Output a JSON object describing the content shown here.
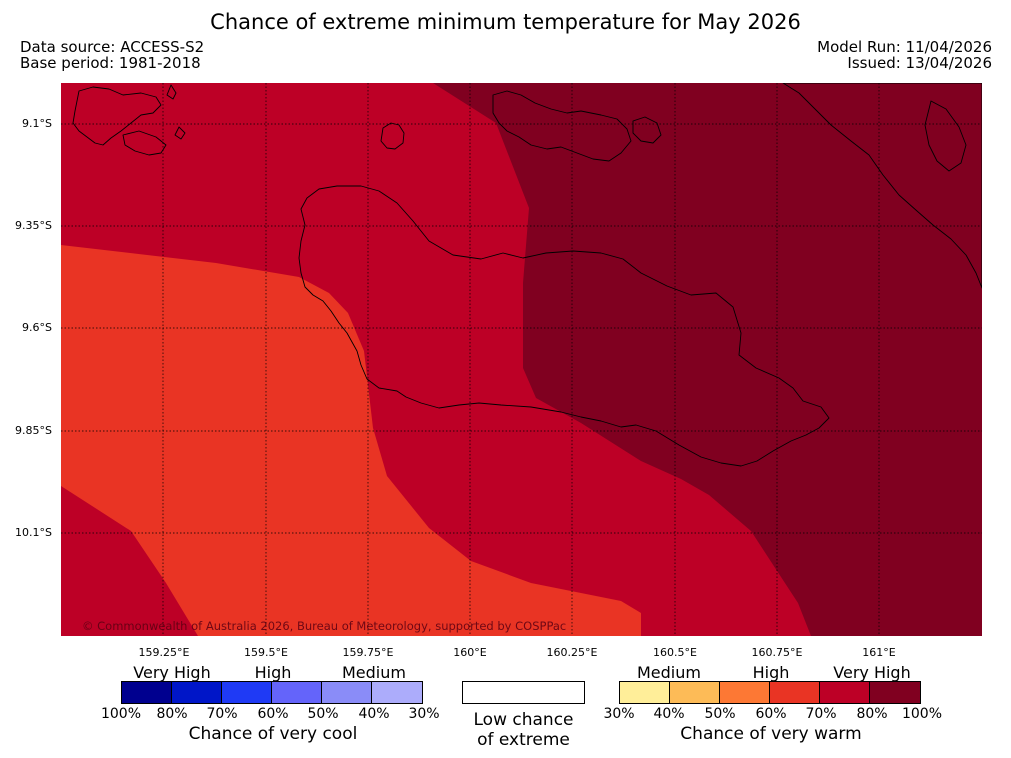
{
  "title": "Chance of extreme minimum temperature for May 2026",
  "data_source": "Data source: ACCESS-S2",
  "base_period": "Base period: 1981-2018",
  "model_run": "Model Run: 11/04/2026",
  "issued": "Issued: 13/04/2026",
  "copyright": "© Commonwealth of Australia 2026, Bureau of Meteorology, supported by COSPPac",
  "map": {
    "lat_labels": [
      "9.1°S",
      "9.35°S",
      "9.6°S",
      "9.85°S",
      "10.1°S"
    ],
    "lon_labels": [
      "159.25°E",
      "159.5°E",
      "159.75°E",
      "160°E",
      "160.25°E",
      "160.5°E",
      "160.75°E",
      "161°E"
    ],
    "zones": [
      {
        "name": "very-high-warm-80-100",
        "color": "#800020"
      },
      {
        "name": "very-high-warm-70-80",
        "color": "#bd0026"
      },
      {
        "name": "high-warm-60-70",
        "color": "#e93424"
      }
    ]
  },
  "legend": {
    "cool": {
      "categories": [
        "Very High",
        "High",
        "Medium"
      ],
      "colors": [
        "#00008f",
        "#0016c8",
        "#1f3af5",
        "#6464fa",
        "#8a8cf8",
        "#acacfb"
      ],
      "ticks": [
        "100%",
        "80%",
        "70%",
        "60%",
        "50%",
        "40%",
        "30%"
      ],
      "title": "Chance of very cool"
    },
    "neutral": {
      "line1": "Low chance",
      "line2": "of extreme",
      "color": "#ffffff"
    },
    "warm": {
      "categories": [
        "Medium",
        "High",
        "Very High"
      ],
      "colors": [
        "#ffee99",
        "#fdbb57",
        "#fd7834",
        "#e93424",
        "#bd0026",
        "#800020"
      ],
      "ticks": [
        "30%",
        "40%",
        "50%",
        "60%",
        "70%",
        "80%",
        "100%"
      ],
      "title": "Chance of very warm"
    }
  }
}
